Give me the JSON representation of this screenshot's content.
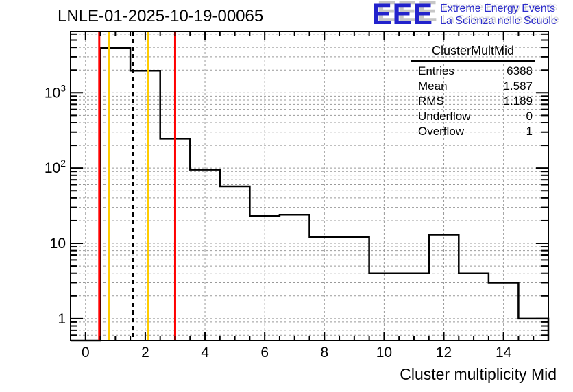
{
  "header": {
    "title": "LNLE-01-2025-10-19-00065"
  },
  "logo": {
    "acronym": "EEE",
    "line1": "Extreme Energy Events",
    "line2": "La Scienza nelle Scuole",
    "color": "#2222cc"
  },
  "stats": {
    "title": "ClusterMultMid",
    "rows": [
      {
        "label": "Entries",
        "value": "6388"
      },
      {
        "label": "Mean",
        "value": "1.587"
      },
      {
        "label": "RMS",
        "value": "1.189"
      },
      {
        "label": "Underflow",
        "value": "0"
      },
      {
        "label": "Overflow",
        "value": "1"
      }
    ]
  },
  "chart_data": {
    "type": "bar",
    "subtype": "step-histogram",
    "title": "LNLE-01-2025-10-19-00065",
    "xlabel": "Cluster multiplicity Mid",
    "ylabel": "",
    "yscale": "log",
    "grid": true,
    "xlim": [
      -0.5,
      15.5
    ],
    "ylim": [
      0.51,
      6500
    ],
    "bin_edges": [
      -0.5,
      0.5,
      1.5,
      2.5,
      3.5,
      4.5,
      5.5,
      6.5,
      7.5,
      8.5,
      9.5,
      10.5,
      11.5,
      12.5,
      13.5,
      14.5,
      15.5
    ],
    "bin_centers": [
      0,
      1,
      2,
      3,
      4,
      5,
      6,
      7,
      8,
      9,
      10,
      11,
      12,
      13,
      14,
      15
    ],
    "values": [
      0,
      3930,
      1960,
      245,
      95,
      57,
      23,
      24,
      12,
      12,
      4,
      4,
      13,
      4,
      3,
      1
    ],
    "underflow": 0,
    "overflow": 1,
    "entries": 6388,
    "mean": 1.587,
    "rms": 1.189,
    "x_major_ticks": [
      0,
      2,
      4,
      6,
      8,
      10,
      12,
      14
    ],
    "x_minor_step": 0.5,
    "y_major_ticks": [
      {
        "value": 1,
        "base": "1",
        "exp": ""
      },
      {
        "value": 10,
        "base": "10",
        "exp": ""
      },
      {
        "value": 100,
        "base": "10",
        "exp": "2"
      },
      {
        "value": 1000,
        "base": "10",
        "exp": "3"
      }
    ],
    "line_color": "#000000",
    "grid_color": "#999999",
    "marker_lines": [
      {
        "x": 0.46,
        "color": "#ff0000",
        "dash": "",
        "width": 3
      },
      {
        "x": 0.79,
        "color": "#ffcc00",
        "dash": "",
        "width": 3
      },
      {
        "x": 1.6,
        "color": "#000000",
        "dash": "6,5",
        "width": 3
      },
      {
        "x": 2.09,
        "color": "#ffcc00",
        "dash": "",
        "width": 3
      },
      {
        "x": 3.0,
        "color": "#ff0000",
        "dash": "",
        "width": 3
      }
    ]
  }
}
